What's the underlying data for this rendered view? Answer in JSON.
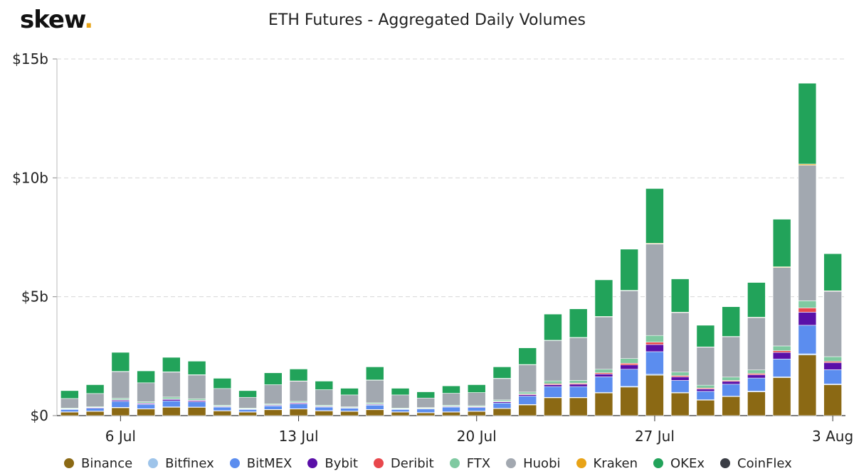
{
  "brand": {
    "name": "skew",
    "dot": "."
  },
  "chart_data": {
    "type": "bar",
    "stacked": true,
    "title": "ETH Futures - Aggregated Daily Volumes",
    "ylim": [
      0,
      15
    ],
    "y_ticks": [
      0,
      5,
      10,
      15
    ],
    "y_tick_labels": [
      "$0",
      "$5b",
      "$10b",
      "$15b"
    ],
    "y_unit": "billion USD",
    "grid": "horizontal dashed",
    "legend_position": "bottom",
    "x": [
      "4 Jul",
      "5 Jul",
      "6 Jul",
      "7 Jul",
      "8 Jul",
      "9 Jul",
      "10 Jul",
      "11 Jul",
      "12 Jul",
      "13 Jul",
      "14 Jul",
      "15 Jul",
      "16 Jul",
      "17 Jul",
      "18 Jul",
      "19 Jul",
      "20 Jul",
      "21 Jul",
      "22 Jul",
      "23 Jul",
      "24 Jul",
      "25 Jul",
      "26 Jul",
      "27 Jul",
      "28 Jul",
      "29 Jul",
      "30 Jul",
      "31 Jul",
      "1 Aug",
      "2 Aug",
      "3 Aug"
    ],
    "x_tick_labels": [
      {
        "index": 2,
        "label": "6 Jul"
      },
      {
        "index": 9,
        "label": "13 Jul"
      },
      {
        "index": 16,
        "label": "20 Jul"
      },
      {
        "index": 23,
        "label": "27 Jul"
      },
      {
        "index": 30,
        "label": "3 Aug"
      }
    ],
    "series": [
      {
        "name": "Binance",
        "color": "#8b6914",
        "values": [
          0.15,
          0.18,
          0.33,
          0.28,
          0.35,
          0.35,
          0.2,
          0.15,
          0.25,
          0.28,
          0.2,
          0.18,
          0.25,
          0.15,
          0.12,
          0.15,
          0.18,
          0.3,
          0.45,
          0.75,
          0.75,
          0.95,
          1.2,
          1.7,
          0.95,
          0.65,
          0.8,
          1.0,
          1.6,
          2.55,
          1.3
        ]
      },
      {
        "name": "Bitfinex",
        "color": "#9ec4ea",
        "values": [
          0.01,
          0.01,
          0.02,
          0.01,
          0.02,
          0.01,
          0.01,
          0.01,
          0.01,
          0.01,
          0.01,
          0.01,
          0.01,
          0.01,
          0.01,
          0.01,
          0.01,
          0.01,
          0.02,
          0.02,
          0.02,
          0.03,
          0.03,
          0.04,
          0.03,
          0.02,
          0.02,
          0.03,
          0.03,
          0.05,
          0.03
        ]
      },
      {
        "name": "BitMEX",
        "color": "#5b8def",
        "values": [
          0.1,
          0.12,
          0.25,
          0.18,
          0.25,
          0.22,
          0.15,
          0.1,
          0.15,
          0.2,
          0.15,
          0.12,
          0.18,
          0.1,
          0.15,
          0.2,
          0.15,
          0.22,
          0.35,
          0.45,
          0.45,
          0.65,
          0.72,
          0.95,
          0.5,
          0.35,
          0.5,
          0.55,
          0.75,
          1.2,
          0.6
        ]
      },
      {
        "name": "Bybit",
        "color": "#5a0fa8",
        "values": [
          0.02,
          0.03,
          0.05,
          0.04,
          0.06,
          0.05,
          0.03,
          0.02,
          0.03,
          0.04,
          0.03,
          0.02,
          0.03,
          0.02,
          0.02,
          0.03,
          0.03,
          0.05,
          0.06,
          0.08,
          0.1,
          0.12,
          0.18,
          0.3,
          0.15,
          0.1,
          0.12,
          0.14,
          0.28,
          0.55,
          0.3
        ]
      },
      {
        "name": "Deribit",
        "color": "#e8474c",
        "values": [
          0.01,
          0.01,
          0.02,
          0.02,
          0.02,
          0.02,
          0.01,
          0.01,
          0.02,
          0.02,
          0.01,
          0.01,
          0.02,
          0.01,
          0.01,
          0.01,
          0.01,
          0.02,
          0.03,
          0.04,
          0.04,
          0.05,
          0.07,
          0.1,
          0.05,
          0.04,
          0.04,
          0.05,
          0.07,
          0.18,
          0.05
        ]
      },
      {
        "name": "FTX",
        "color": "#7fc9a1",
        "values": [
          0.03,
          0.03,
          0.06,
          0.05,
          0.08,
          0.06,
          0.04,
          0.03,
          0.04,
          0.05,
          0.04,
          0.03,
          0.05,
          0.03,
          0.03,
          0.04,
          0.04,
          0.06,
          0.08,
          0.12,
          0.12,
          0.15,
          0.2,
          0.28,
          0.15,
          0.12,
          0.14,
          0.15,
          0.2,
          0.3,
          0.2
        ]
      },
      {
        "name": "Huobi",
        "color": "#a2a8b0",
        "values": [
          0.4,
          0.55,
          1.12,
          0.8,
          1.05,
          1.0,
          0.7,
          0.45,
          0.8,
          0.85,
          0.65,
          0.5,
          0.95,
          0.55,
          0.4,
          0.5,
          0.55,
          0.9,
          1.15,
          1.7,
          1.8,
          2.2,
          2.85,
          3.85,
          2.5,
          1.6,
          1.7,
          2.2,
          3.3,
          5.7,
          2.75
        ]
      },
      {
        "name": "Kraken",
        "color": "#e8a317",
        "values": [
          0.0,
          0.0,
          0.01,
          0.0,
          0.01,
          0.01,
          0.0,
          0.0,
          0.0,
          0.01,
          0.0,
          0.0,
          0.01,
          0.0,
          0.0,
          0.0,
          0.0,
          0.01,
          0.01,
          0.01,
          0.01,
          0.02,
          0.02,
          0.03,
          0.02,
          0.01,
          0.01,
          0.02,
          0.03,
          0.05,
          0.02
        ]
      },
      {
        "name": "OKEx",
        "color": "#22a35a",
        "values": [
          0.33,
          0.37,
          0.8,
          0.5,
          0.61,
          0.57,
          0.43,
          0.28,
          0.5,
          0.5,
          0.36,
          0.28,
          0.55,
          0.28,
          0.26,
          0.31,
          0.33,
          0.48,
          0.7,
          1.1,
          1.2,
          1.54,
          1.73,
          2.3,
          1.4,
          0.91,
          1.25,
          1.46,
          2.0,
          3.4,
          1.56
        ]
      },
      {
        "name": "CoinFlex",
        "color": "#3a3d45",
        "values": [
          0,
          0,
          0,
          0,
          0,
          0,
          0,
          0,
          0,
          0,
          0,
          0,
          0,
          0,
          0,
          0,
          0,
          0,
          0,
          0,
          0,
          0,
          0,
          0,
          0,
          0,
          0,
          0,
          0,
          0,
          0
        ]
      }
    ]
  }
}
